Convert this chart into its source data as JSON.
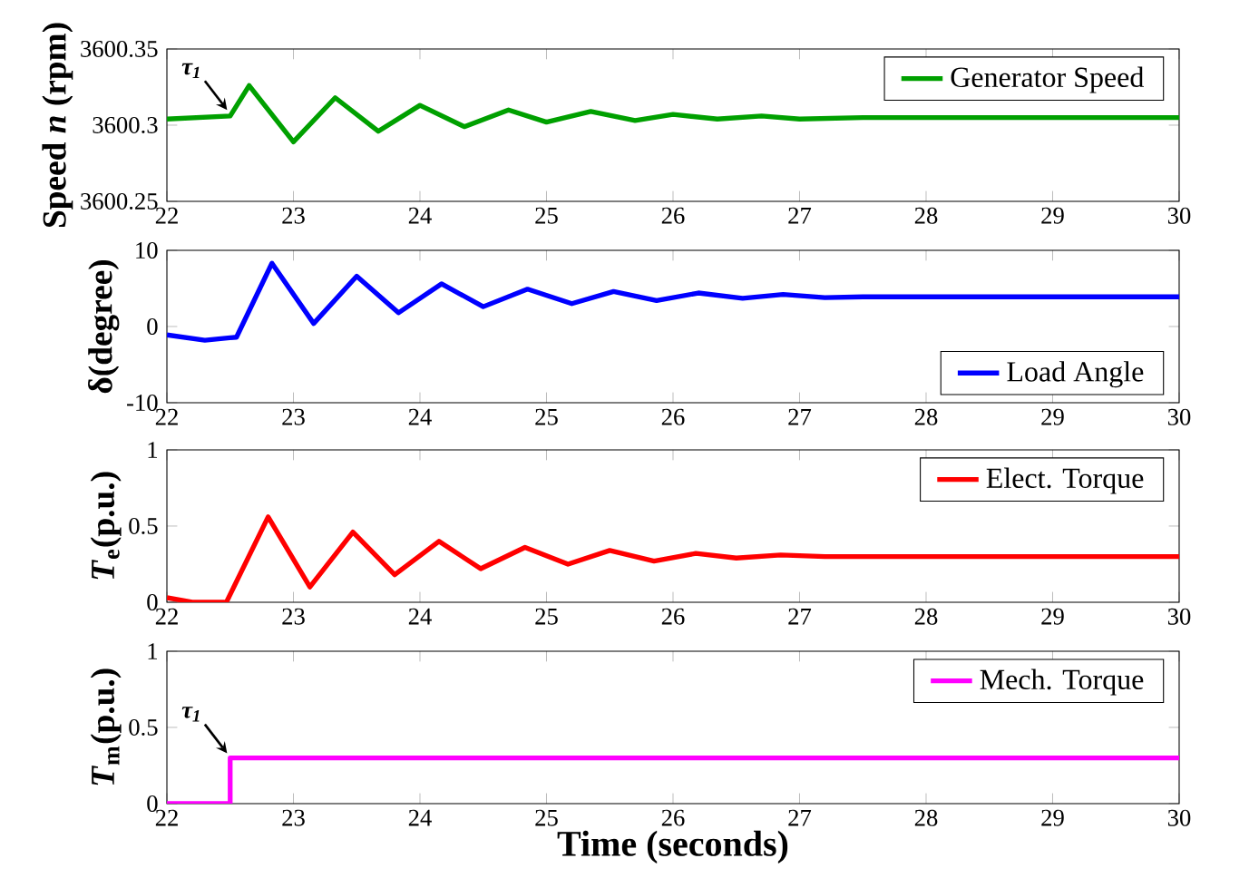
{
  "chart_data": [
    {
      "type": "line",
      "ylabel": "Speed *n* (rpm)",
      "xlim": [
        22,
        30
      ],
      "xticks": [
        22,
        23,
        24,
        25,
        26,
        27,
        28,
        29,
        30
      ],
      "ylim": [
        3600.25,
        3600.35
      ],
      "yticks": [
        3600.25,
        3600.3,
        3600.35
      ],
      "legend": "top right",
      "annotations": [
        {
          "text": "τ$_{1}$",
          "x": 22.5,
          "y": 3600.307
        }
      ],
      "series": [
        {
          "name": "Generator Speed",
          "color": "#00a000",
          "x": [
            22,
            22.5,
            22.65,
            23.0,
            23.33,
            23.67,
            24.0,
            24.35,
            24.7,
            25.0,
            25.35,
            25.7,
            26.0,
            26.35,
            26.7,
            27.0,
            27.5,
            28,
            29,
            30
          ],
          "values": [
            3600.304,
            3600.306,
            3600.326,
            3600.289,
            3600.318,
            3600.296,
            3600.313,
            3600.299,
            3600.31,
            3600.302,
            3600.309,
            3600.303,
            3600.307,
            3600.304,
            3600.306,
            3600.304,
            3600.305,
            3600.305,
            3600.305,
            3600.305
          ]
        }
      ]
    },
    {
      "type": "line",
      "ylabel": "δ(degree)",
      "xlim": [
        22,
        30
      ],
      "xticks": [
        22,
        23,
        24,
        25,
        26,
        27,
        28,
        29,
        30
      ],
      "ylim": [
        -10,
        10
      ],
      "yticks": [
        -10,
        0,
        10
      ],
      "legend": "bottom right",
      "series": [
        {
          "name": "Load Angle",
          "color": "#0000ff",
          "x": [
            22,
            22.3,
            22.55,
            22.83,
            23.16,
            23.5,
            23.83,
            24.17,
            24.5,
            24.85,
            25.2,
            25.53,
            25.87,
            26.2,
            26.55,
            26.87,
            27.2,
            27.5,
            28,
            29,
            30
          ],
          "values": [
            -1.1,
            -1.8,
            -1.4,
            8.3,
            0.4,
            6.6,
            1.8,
            5.6,
            2.6,
            4.9,
            3.0,
            4.6,
            3.4,
            4.4,
            3.7,
            4.2,
            3.8,
            3.9,
            3.9,
            3.9,
            3.9
          ]
        }
      ]
    },
    {
      "type": "line",
      "ylabel": "*T*$_{e}$(p.u.)",
      "xlim": [
        22,
        30
      ],
      "xticks": [
        22,
        23,
        24,
        25,
        26,
        27,
        28,
        29,
        30
      ],
      "ylim": [
        0,
        1
      ],
      "yticks": [
        0,
        0.5,
        1
      ],
      "legend": "top right",
      "series": [
        {
          "name": "Elect. Torque",
          "color": "#ff0000",
          "x": [
            22,
            22.2,
            22.47,
            22.8,
            23.13,
            23.47,
            23.8,
            24.15,
            24.48,
            24.83,
            25.17,
            25.5,
            25.85,
            26.18,
            26.5,
            26.85,
            27.2,
            27.5,
            28,
            29,
            30
          ],
          "values": [
            0.03,
            0,
            0,
            0.56,
            0.1,
            0.46,
            0.18,
            0.4,
            0.22,
            0.36,
            0.25,
            0.34,
            0.27,
            0.32,
            0.29,
            0.31,
            0.3,
            0.3,
            0.3,
            0.3,
            0.3
          ]
        }
      ]
    },
    {
      "type": "line",
      "ylabel": "*T*$_{m}$(p.u.)",
      "xlabel": "Time (seconds)",
      "xlim": [
        22,
        30
      ],
      "xticks": [
        22,
        23,
        24,
        25,
        26,
        27,
        28,
        29,
        30
      ],
      "ylim": [
        0,
        1
      ],
      "yticks": [
        0,
        0.5,
        1
      ],
      "legend": "top right",
      "annotations": [
        {
          "text": "τ$_{1}$",
          "x": 22.5,
          "y": 0.3
        }
      ],
      "series": [
        {
          "name": "Mech. Torque",
          "color": "#ff00ff",
          "x": [
            22,
            22.5,
            22.5,
            30
          ],
          "values": [
            0,
            0,
            0.3,
            0.3
          ]
        }
      ]
    }
  ]
}
